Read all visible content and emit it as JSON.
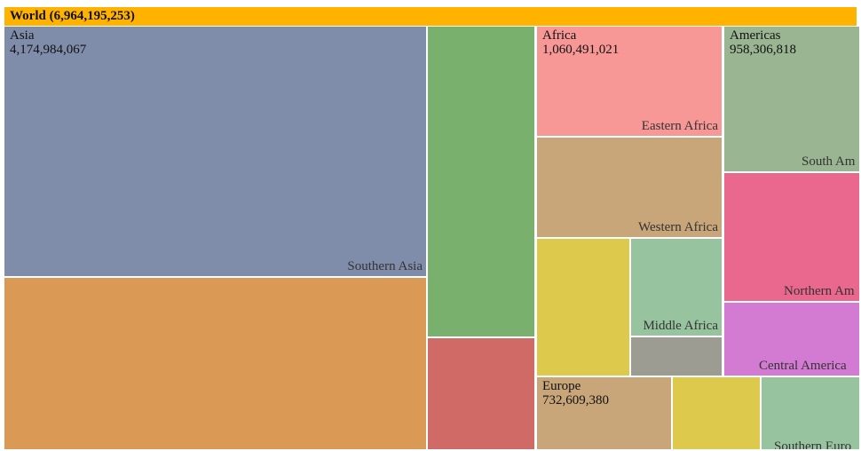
{
  "chart_data": {
    "type": "treemap",
    "root": {
      "name": "World",
      "value": 6964195253,
      "label": "World (6,964,195,253)",
      "color": "#FFB300"
    },
    "regions": [
      {
        "name": "Asia",
        "value": 4174984067,
        "value_label": "4,174,984,067"
      },
      {
        "name": "Africa",
        "value": 1060491021,
        "value_label": "1,060,491,021"
      },
      {
        "name": "Americas",
        "value": 958306818,
        "value_label": "958,306,818"
      },
      {
        "name": "Europe",
        "value": 732609380,
        "value_label": "732,609,380"
      }
    ],
    "subregions": [
      {
        "region": "Asia",
        "name": "Southern Asia",
        "label": "Southern Asia",
        "color": "#7F8DAB"
      },
      {
        "region": "Asia",
        "name": "",
        "label": "",
        "color": "#DA9A55"
      },
      {
        "region": "Asia",
        "name": "",
        "label": "",
        "color": "#7AB06E"
      },
      {
        "region": "Asia",
        "name": "",
        "label": "",
        "color": "#D06A67"
      },
      {
        "region": "Africa",
        "name": "Eastern Africa",
        "label": "Eastern Africa",
        "color": "#F89896"
      },
      {
        "region": "Africa",
        "name": "Western Africa",
        "label": "Western Africa",
        "color": "#C8A679"
      },
      {
        "region": "Africa",
        "name": "",
        "label": "",
        "color": "#DDCA4C"
      },
      {
        "region": "Africa",
        "name": "Middle Africa",
        "label": "Middle Africa",
        "color": "#97C49F"
      },
      {
        "region": "Africa",
        "name": "",
        "label": "",
        "color": "#9C9C92"
      },
      {
        "region": "Americas",
        "name": "South America",
        "label": "South Am",
        "color": "#9AB592"
      },
      {
        "region": "Americas",
        "name": "Northern America",
        "label": "Northern Am",
        "color": "#EA678D"
      },
      {
        "region": "Americas",
        "name": "Central America",
        "label": "Central America",
        "color": "#D37BD2"
      },
      {
        "region": "Europe",
        "name": "",
        "label": "",
        "color": "#C8A679"
      },
      {
        "region": "Europe",
        "name": "",
        "label": "",
        "color": "#DDCA4C"
      },
      {
        "region": "Europe",
        "name": "Southern Europe",
        "label": "Southern Euro",
        "color": "#97C49F"
      }
    ]
  }
}
